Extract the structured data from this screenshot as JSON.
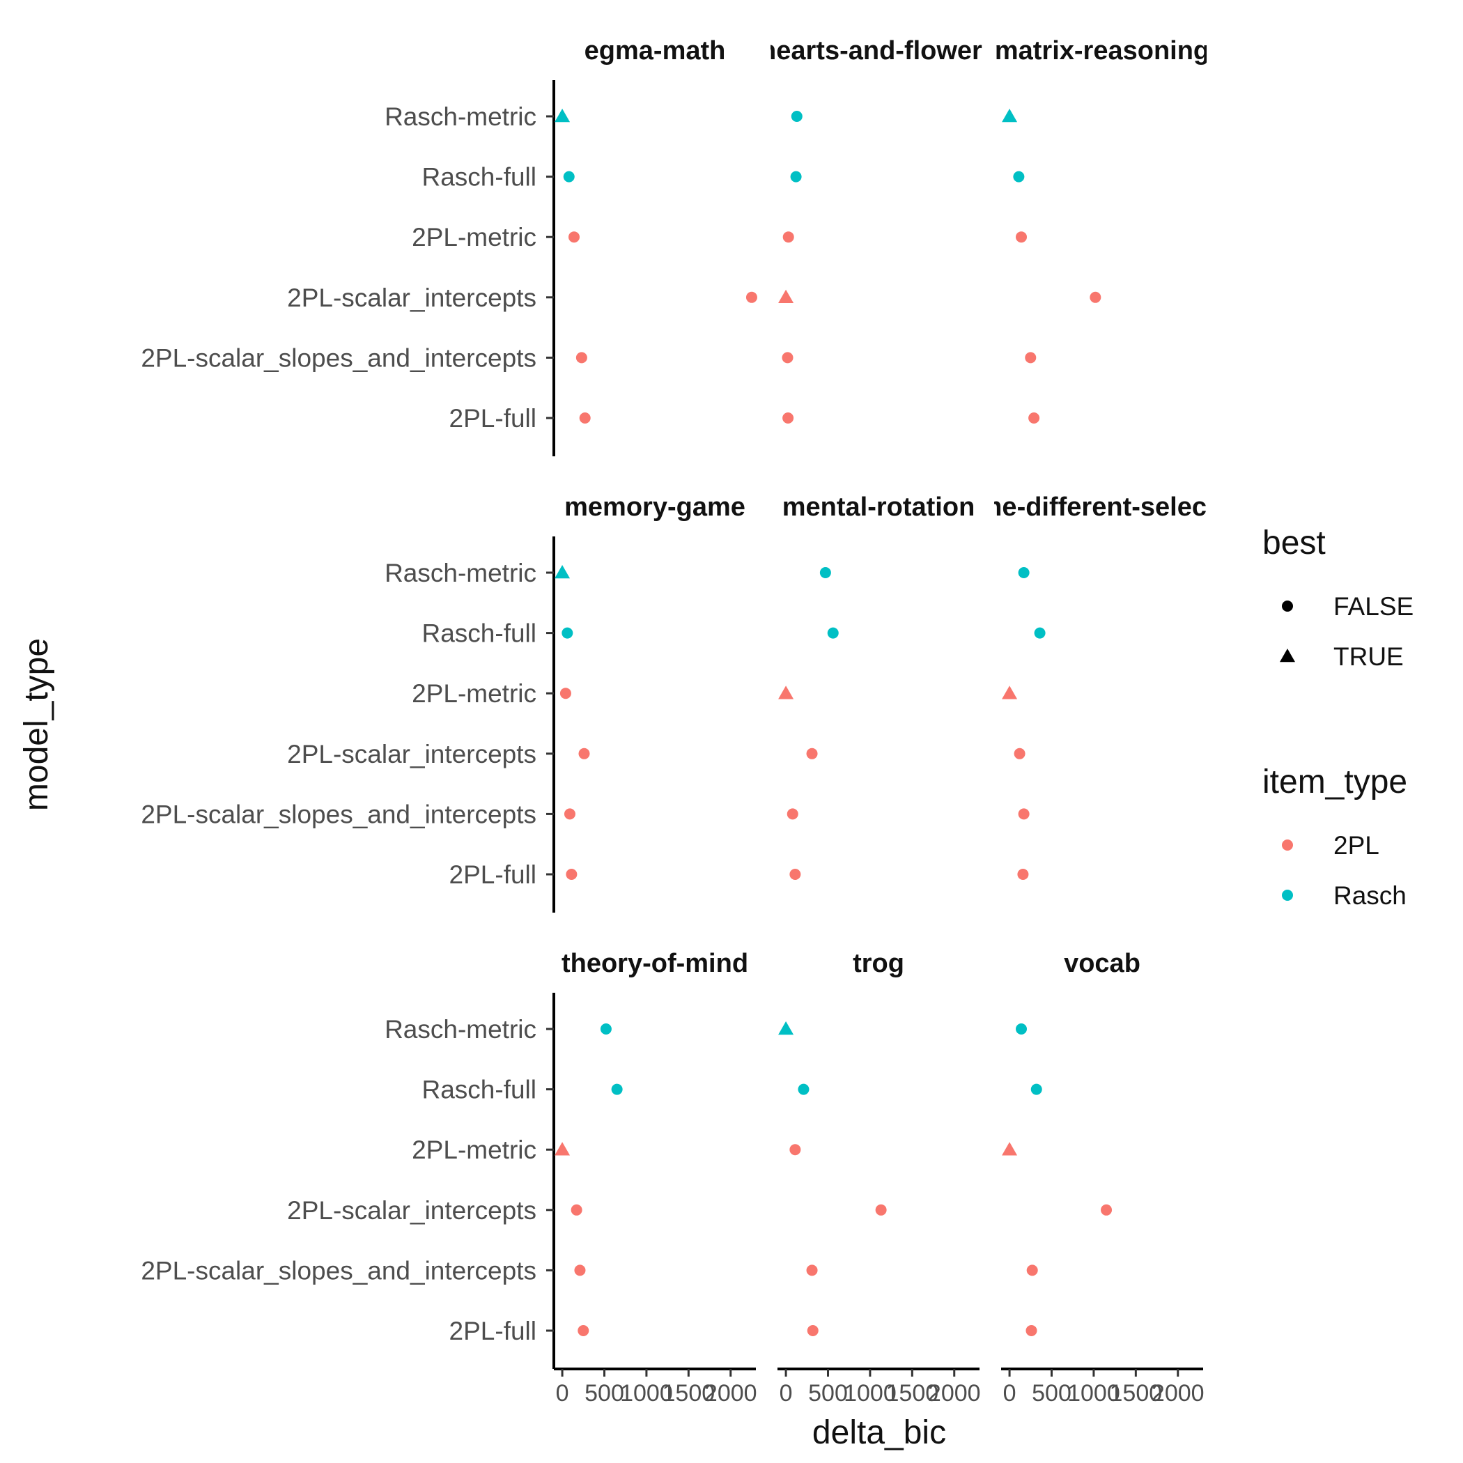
{
  "chart_data": {
    "type": "scatter",
    "facet_layout": {
      "rows": 3,
      "cols": 3
    },
    "xlabel": "delta_bic",
    "ylabel": "model_type",
    "xlim": [
      -100,
      2300
    ],
    "x_ticks": [
      0,
      500,
      1000,
      1500,
      2000
    ],
    "x_tick_labels": [
      "0",
      "500",
      "1000",
      "1500",
      "2000"
    ],
    "y_categories": [
      "Rasch-metric",
      "Rasch-full",
      "2PL-metric",
      "2PL-scalar_intercepts",
      "2PL-scalar_slopes_and_intercepts",
      "2PL-full"
    ],
    "colors": {
      "2PL": "#F8766D",
      "Rasch": "#00BFC4"
    },
    "legend": {
      "placement": "right",
      "best": {
        "title": "best",
        "labels": [
          "FALSE",
          "TRUE"
        ]
      },
      "item_type": {
        "title": "item_type",
        "labels": [
          "2PL",
          "Rasch"
        ]
      }
    },
    "panels": [
      {
        "title": "egma-math",
        "points": [
          {
            "model": "Rasch-metric",
            "x": 0,
            "item_type": "Rasch",
            "best": true
          },
          {
            "model": "Rasch-full",
            "x": 80,
            "item_type": "Rasch",
            "best": false
          },
          {
            "model": "2PL-metric",
            "x": 140,
            "item_type": "2PL",
            "best": false
          },
          {
            "model": "2PL-scalar_intercepts",
            "x": 2250,
            "item_type": "2PL",
            "best": false
          },
          {
            "model": "2PL-scalar_slopes_and_intercepts",
            "x": 230,
            "item_type": "2PL",
            "best": false
          },
          {
            "model": "2PL-full",
            "x": 270,
            "item_type": "2PL",
            "best": false
          }
        ]
      },
      {
        "title": "hearts-and-flowers",
        "points": [
          {
            "model": "Rasch-metric",
            "x": 130,
            "item_type": "Rasch",
            "best": false
          },
          {
            "model": "Rasch-full",
            "x": 120,
            "item_type": "Rasch",
            "best": false
          },
          {
            "model": "2PL-metric",
            "x": 30,
            "item_type": "2PL",
            "best": false
          },
          {
            "model": "2PL-scalar_intercepts",
            "x": 0,
            "item_type": "2PL",
            "best": true
          },
          {
            "model": "2PL-scalar_slopes_and_intercepts",
            "x": 20,
            "item_type": "2PL",
            "best": false
          },
          {
            "model": "2PL-full",
            "x": 25,
            "item_type": "2PL",
            "best": false
          }
        ]
      },
      {
        "title": "matrix-reasoning",
        "points": [
          {
            "model": "Rasch-metric",
            "x": 0,
            "item_type": "Rasch",
            "best": true
          },
          {
            "model": "Rasch-full",
            "x": 110,
            "item_type": "Rasch",
            "best": false
          },
          {
            "model": "2PL-metric",
            "x": 140,
            "item_type": "2PL",
            "best": false
          },
          {
            "model": "2PL-scalar_intercepts",
            "x": 1020,
            "item_type": "2PL",
            "best": false
          },
          {
            "model": "2PL-scalar_slopes_and_intercepts",
            "x": 250,
            "item_type": "2PL",
            "best": false
          },
          {
            "model": "2PL-full",
            "x": 290,
            "item_type": "2PL",
            "best": false
          }
        ]
      },
      {
        "title": "memory-game",
        "points": [
          {
            "model": "Rasch-metric",
            "x": 0,
            "item_type": "Rasch",
            "best": true
          },
          {
            "model": "Rasch-full",
            "x": 60,
            "item_type": "Rasch",
            "best": false
          },
          {
            "model": "2PL-metric",
            "x": 40,
            "item_type": "2PL",
            "best": false
          },
          {
            "model": "2PL-scalar_intercepts",
            "x": 260,
            "item_type": "2PL",
            "best": false
          },
          {
            "model": "2PL-scalar_slopes_and_intercepts",
            "x": 90,
            "item_type": "2PL",
            "best": false
          },
          {
            "model": "2PL-full",
            "x": 110,
            "item_type": "2PL",
            "best": false
          }
        ]
      },
      {
        "title": "mental-rotation",
        "points": [
          {
            "model": "Rasch-metric",
            "x": 470,
            "item_type": "Rasch",
            "best": false
          },
          {
            "model": "Rasch-full",
            "x": 560,
            "item_type": "Rasch",
            "best": false
          },
          {
            "model": "2PL-metric",
            "x": 0,
            "item_type": "2PL",
            "best": true
          },
          {
            "model": "2PL-scalar_intercepts",
            "x": 310,
            "item_type": "2PL",
            "best": false
          },
          {
            "model": "2PL-scalar_slopes_and_intercepts",
            "x": 80,
            "item_type": "2PL",
            "best": false
          },
          {
            "model": "2PL-full",
            "x": 110,
            "item_type": "2PL",
            "best": false
          }
        ]
      },
      {
        "title": "same-different-selection",
        "points": [
          {
            "model": "Rasch-metric",
            "x": 170,
            "item_type": "Rasch",
            "best": false
          },
          {
            "model": "Rasch-full",
            "x": 360,
            "item_type": "Rasch",
            "best": false
          },
          {
            "model": "2PL-metric",
            "x": 0,
            "item_type": "2PL",
            "best": true
          },
          {
            "model": "2PL-scalar_intercepts",
            "x": 120,
            "item_type": "2PL",
            "best": false
          },
          {
            "model": "2PL-scalar_slopes_and_intercepts",
            "x": 170,
            "item_type": "2PL",
            "best": false
          },
          {
            "model": "2PL-full",
            "x": 160,
            "item_type": "2PL",
            "best": false
          }
        ]
      },
      {
        "title": "theory-of-mind",
        "points": [
          {
            "model": "Rasch-metric",
            "x": 520,
            "item_type": "Rasch",
            "best": false
          },
          {
            "model": "Rasch-full",
            "x": 650,
            "item_type": "Rasch",
            "best": false
          },
          {
            "model": "2PL-metric",
            "x": 0,
            "item_type": "2PL",
            "best": true
          },
          {
            "model": "2PL-scalar_intercepts",
            "x": 170,
            "item_type": "2PL",
            "best": false
          },
          {
            "model": "2PL-scalar_slopes_and_intercepts",
            "x": 210,
            "item_type": "2PL",
            "best": false
          },
          {
            "model": "2PL-full",
            "x": 250,
            "item_type": "2PL",
            "best": false
          }
        ]
      },
      {
        "title": "trog",
        "points": [
          {
            "model": "Rasch-metric",
            "x": 0,
            "item_type": "Rasch",
            "best": true
          },
          {
            "model": "Rasch-full",
            "x": 210,
            "item_type": "Rasch",
            "best": false
          },
          {
            "model": "2PL-metric",
            "x": 110,
            "item_type": "2PL",
            "best": false
          },
          {
            "model": "2PL-scalar_intercepts",
            "x": 1130,
            "item_type": "2PL",
            "best": false
          },
          {
            "model": "2PL-scalar_slopes_and_intercepts",
            "x": 310,
            "item_type": "2PL",
            "best": false
          },
          {
            "model": "2PL-full",
            "x": 320,
            "item_type": "2PL",
            "best": false
          }
        ]
      },
      {
        "title": "vocab",
        "points": [
          {
            "model": "Rasch-metric",
            "x": 140,
            "item_type": "Rasch",
            "best": false
          },
          {
            "model": "Rasch-full",
            "x": 320,
            "item_type": "Rasch",
            "best": false
          },
          {
            "model": "2PL-metric",
            "x": 0,
            "item_type": "2PL",
            "best": true
          },
          {
            "model": "2PL-scalar_intercepts",
            "x": 1150,
            "item_type": "2PL",
            "best": false
          },
          {
            "model": "2PL-scalar_slopes_and_intercepts",
            "x": 270,
            "item_type": "2PL",
            "best": false
          },
          {
            "model": "2PL-full",
            "x": 260,
            "item_type": "2PL",
            "best": false
          }
        ]
      }
    ]
  }
}
